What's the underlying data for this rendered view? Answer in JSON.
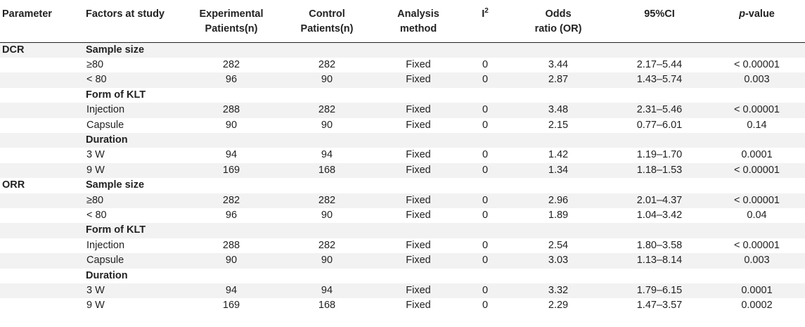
{
  "headers": {
    "parameter": "Parameter",
    "factors": "Factors at study",
    "experimental_l1": "Experimental",
    "experimental_l2": "Patients(n)",
    "control_l1": "Control",
    "control_l2": "Patients(n)",
    "analysis_l1": "Analysis",
    "analysis_l2": "method",
    "i2_base": "I",
    "i2_sup": "2",
    "odds_l1": "Odds",
    "odds_l2": "ratio (OR)",
    "ci": "95%CI",
    "pvalue_italic": "p",
    "pvalue_rest": "-value"
  },
  "rows": [
    {
      "parameter": "DCR",
      "factor": "Sample size",
      "group": true
    },
    {
      "parameter": "",
      "factor": "≥80",
      "experimental": "282",
      "control": "282",
      "method": "Fixed",
      "i2": "0",
      "or": "3.44",
      "ci": "2.17–5.44",
      "p": "< 0.00001"
    },
    {
      "parameter": "",
      "factor": "< 80",
      "experimental": "96",
      "control": "90",
      "method": "Fixed",
      "i2": "0",
      "or": "2.87",
      "ci": "1.43–5.74",
      "p": "0.003"
    },
    {
      "parameter": "",
      "factor": "Form of KLT",
      "group": true
    },
    {
      "parameter": "",
      "factor": "Injection",
      "experimental": "288",
      "control": "282",
      "method": "Fixed",
      "i2": "0",
      "or": "3.48",
      "ci": "2.31–5.46",
      "p": "< 0.00001"
    },
    {
      "parameter": "",
      "factor": "Capsule",
      "experimental": "90",
      "control": "90",
      "method": "Fixed",
      "i2": "0",
      "or": "2.15",
      "ci": "0.77–6.01",
      "p": "0.14"
    },
    {
      "parameter": "",
      "factor": "Duration",
      "group": true
    },
    {
      "parameter": "",
      "factor": "3 W",
      "experimental": "94",
      "control": "94",
      "method": "Fixed",
      "i2": "0",
      "or": "1.42",
      "ci": "1.19–1.70",
      "p": "0.0001"
    },
    {
      "parameter": "",
      "factor": "9 W",
      "experimental": "169",
      "control": "168",
      "method": "Fixed",
      "i2": "0",
      "or": "1.34",
      "ci": "1.18–1.53",
      "p": "< 0.00001"
    },
    {
      "parameter": "ORR",
      "factor": "Sample size",
      "group": true
    },
    {
      "parameter": "",
      "factor": "≥80",
      "experimental": "282",
      "control": "282",
      "method": "Fixed",
      "i2": "0",
      "or": "2.96",
      "ci": "2.01–4.37",
      "p": "< 0.00001"
    },
    {
      "parameter": "",
      "factor": "< 80",
      "experimental": "96",
      "control": "90",
      "method": "Fixed",
      "i2": "0",
      "or": "1.89",
      "ci": "1.04–3.42",
      "p": "0.04"
    },
    {
      "parameter": "",
      "factor": "Form of KLT",
      "group": true
    },
    {
      "parameter": "",
      "factor": "Injection",
      "experimental": "288",
      "control": "282",
      "method": "Fixed",
      "i2": "0",
      "or": "2.54",
      "ci": "1.80–3.58",
      "p": "< 0.00001"
    },
    {
      "parameter": "",
      "factor": "Capsule",
      "experimental": "90",
      "control": "90",
      "method": "Fixed",
      "i2": "0",
      "or": "3.03",
      "ci": "1.13–8.14",
      "p": "0.003"
    },
    {
      "parameter": "",
      "factor": "Duration",
      "group": true
    },
    {
      "parameter": "",
      "factor": "3 W",
      "experimental": "94",
      "control": "94",
      "method": "Fixed",
      "i2": "0",
      "or": "3.32",
      "ci": "1.79–6.15",
      "p": "0.0001"
    },
    {
      "parameter": "",
      "factor": "9 W",
      "experimental": "169",
      "control": "168",
      "method": "Fixed",
      "i2": "0",
      "or": "2.29",
      "ci": "1.47–3.57",
      "p": "0.0002"
    }
  ]
}
